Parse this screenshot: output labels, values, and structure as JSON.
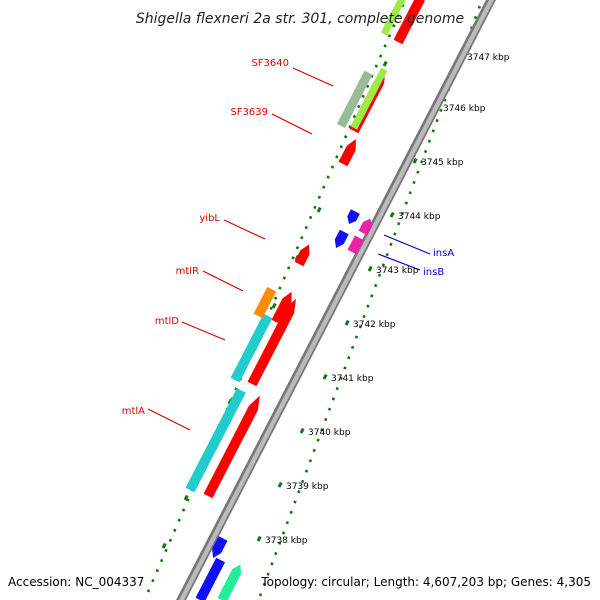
{
  "title": "Shigella flexneri 2a str. 301, complete genome",
  "footer": {
    "accession": "Accession: NC_004337",
    "summary": "Topology: circular; Length: 4,607,203 bp; Genes: 4,305"
  },
  "colors": {
    "red": "#ff0000",
    "cyan": "#22cccc",
    "orange": "#ff8c00",
    "blue": "#1010ff",
    "magenta": "#ee22aa",
    "sage": "#99bb99",
    "lime": "#99ee44",
    "teal": "#22ee99",
    "label_red": "#dd0000",
    "label_blue": "#0000cc",
    "tick_green": "#117711",
    "backbone": "#999999"
  },
  "ticks": [
    {
      "label": "3738 kbp"
    },
    {
      "label": "3739 kbp"
    },
    {
      "label": "3740 kbp"
    },
    {
      "label": "3741 kbp"
    },
    {
      "label": "3742 kbp"
    },
    {
      "label": "3743 kbp"
    },
    {
      "label": "3744 kbp"
    },
    {
      "label": "3745 kbp"
    },
    {
      "label": "3746 kbp"
    },
    {
      "label": "3747 kbp"
    }
  ],
  "gene_labels": [
    {
      "name": "SF3640",
      "color": "red"
    },
    {
      "name": "SF3639",
      "color": "red"
    },
    {
      "name": "yibL",
      "color": "red"
    },
    {
      "name": "mtlR",
      "color": "red"
    },
    {
      "name": "mtlD",
      "color": "red"
    },
    {
      "name": "mtlA",
      "color": "red"
    },
    {
      "name": "insA",
      "color": "blue"
    },
    {
      "name": "insB",
      "color": "blue"
    }
  ]
}
